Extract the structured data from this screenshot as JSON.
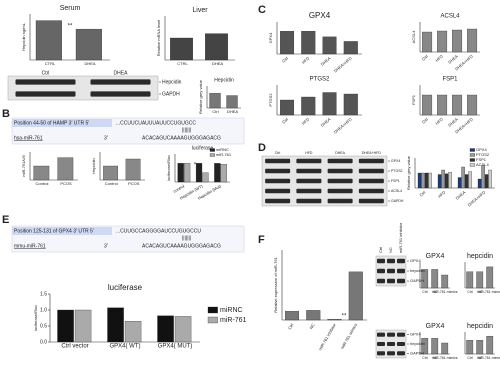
{
  "chart_data": [
    {
      "type": "bar",
      "title": "Serum",
      "ylabel": "Hepcidin ng/mL",
      "categories": [
        "CTRL",
        "DHEA"
      ],
      "values": [
        60,
        47
      ],
      "color": "#666",
      "ylim": [
        0,
        70
      ],
      "annotation": "**"
    },
    {
      "type": "bar",
      "title": "Liver",
      "ylabel": "Relative mRNA level",
      "categories": [
        "CTRL",
        "DHEA"
      ],
      "values": [
        1.5,
        1.8
      ],
      "color": "#444",
      "ylim": [
        0,
        3
      ]
    },
    {
      "type": "bar",
      "title": "Hepcidin",
      "ylabel": "Relative grey value",
      "categories": [
        "Ctrl",
        "DHEA"
      ],
      "values": [
        1.0,
        0.85
      ],
      "color": "#777",
      "ylim": [
        0,
        1.5
      ]
    },
    {
      "type": "bar",
      "ylabel": "miR-761/U6",
      "categories": [
        "Control",
        "PCOS"
      ],
      "values": [
        1.0,
        1.6
      ],
      "color": "#888",
      "ylim": [
        0,
        2
      ]
    },
    {
      "type": "bar",
      "ylabel": "Hepcidin",
      "categories": [
        "Control",
        "PCOS"
      ],
      "values": [
        1.0,
        1.5
      ],
      "color": "#888",
      "ylim": [
        0,
        2
      ]
    },
    {
      "type": "bar",
      "title": "luciferase",
      "ylabel": "luciferase/Rluc",
      "categories": [
        "control",
        "Hepcidin (WT)",
        "Hepcidin (Mut)"
      ],
      "series": [
        {
          "name": "miRNC",
          "color": "#222",
          "values": [
            1.0,
            1.0,
            1.0
          ]
        },
        {
          "name": "miR-761",
          "color": "#aaa",
          "values": [
            1.0,
            0.5,
            0.95
          ]
        }
      ],
      "ylim": [
        0,
        1.5
      ],
      "annotation": "*"
    },
    {
      "type": "bar",
      "title": "GPX4",
      "ylabel": "GPX4",
      "categories": [
        "Ctrl",
        "HFD",
        "DHEA",
        "DHEA+HFD"
      ],
      "values": [
        1.0,
        1.0,
        0.75,
        0.55
      ],
      "color": "#555",
      "ylim": [
        0,
        1.4
      ]
    },
    {
      "type": "bar",
      "title": "ACSL4",
      "ylabel": "ACSL4",
      "categories": [
        "Ctrl",
        "HFD",
        "DHEA",
        "DHEA+HFD"
      ],
      "values": [
        1.0,
        1.05,
        1.1,
        1.15
      ],
      "color": "#888",
      "ylim": [
        0,
        1.5
      ]
    },
    {
      "type": "bar",
      "title": "PTGS2",
      "ylabel": "PTGS2",
      "categories": [
        "Ctrl",
        "HFD",
        "DHEA",
        "DHEA+HFD"
      ],
      "values": [
        1.0,
        1.2,
        1.5,
        1.4
      ],
      "color": "#555",
      "ylim": [
        0,
        2
      ]
    },
    {
      "type": "bar",
      "title": "FSP1",
      "ylabel": "FSP1",
      "categories": [
        "Ctrl",
        "HFD",
        "DHEA",
        "DHEA+HFD"
      ],
      "values": [
        1.0,
        1.0,
        1.0,
        1.0
      ],
      "color": "#888",
      "ylim": [
        0,
        1.5
      ]
    },
    {
      "type": "bar",
      "ylabel": "Relative grey value",
      "categories": [
        "Ctrl",
        "HFD",
        "DHEA",
        "DHEA+HFD"
      ],
      "series": [
        {
          "name": "GPX4",
          "color": "#1f3b73",
          "values": [
            1.0,
            0.9,
            0.7,
            0.6
          ]
        },
        {
          "name": "PTGS2",
          "color": "#999",
          "values": [
            1.0,
            1.2,
            1.4,
            1.5
          ]
        },
        {
          "name": "FSP1",
          "color": "#333",
          "values": [
            1.0,
            0.95,
            0.9,
            0.9
          ]
        },
        {
          "name": "ACSL4",
          "color": "#ccc",
          "values": [
            1.0,
            1.05,
            1.1,
            1.2
          ]
        }
      ],
      "ylim": [
        0,
        2
      ]
    },
    {
      "type": "bar",
      "title": "luciferase",
      "ylabel": "luciferase/Rluc",
      "categories": [
        "Ctrl vector",
        "GPX4( WT)",
        "GPX4( MUT)"
      ],
      "series": [
        {
          "name": "miRNC",
          "color": "#111",
          "values": [
            1.0,
            1.07,
            0.82
          ]
        },
        {
          "name": "miR-761",
          "color": "#aaa",
          "values": [
            1.0,
            0.65,
            0.8
          ]
        }
      ],
      "ylim": [
        0,
        1.5
      ],
      "yticks": [
        {
          "value": 0,
          "label": "0.0"
        },
        0.5,
        {
          "value": 1,
          "label": "1.0"
        },
        1.5
      ],
      "annotation": "*"
    },
    {
      "type": "bar",
      "ylabel": "Relative expression of miR-761",
      "categories": [
        "Ctrl",
        "NC",
        "miR-761 inhibitor",
        "miR-761 mimics"
      ],
      "values": [
        1.0,
        1.1,
        0.1,
        5.5
      ],
      "color": "#777",
      "ylim": [
        0,
        8
      ],
      "annotation": "**"
    },
    {
      "type": "bar",
      "title": "GPX4",
      "categories": [
        "Ctrl",
        "NC",
        "miR-761 mimics"
      ],
      "values": [
        1.0,
        1.0,
        0.7
      ],
      "color": "#888",
      "ylim": [
        0,
        1.4
      ]
    },
    {
      "type": "bar",
      "title": "hepcidin",
      "categories": [
        "Ctrl",
        "NC",
        "miR-761 mimics"
      ],
      "values": [
        1.0,
        1.0,
        1.3
      ],
      "color": "#888",
      "ylim": [
        0,
        1.6
      ]
    },
    {
      "type": "bar",
      "title": "GPX4",
      "categories": [
        "Ctrl",
        "NC",
        "miR-761 mimics"
      ],
      "values": [
        1.0,
        1.0,
        0.7
      ],
      "color": "#888",
      "ylim": [
        0,
        1.4
      ]
    },
    {
      "type": "bar",
      "title": "hepcidin",
      "categories": [
        "Ctrl",
        "NC",
        "miR-761 mimics"
      ],
      "values": [
        1.0,
        1.0,
        1.3
      ],
      "color": "#888",
      "ylim": [
        0,
        1.6
      ]
    }
  ],
  "panels": [
    "B",
    "C",
    "D",
    "E",
    "F"
  ],
  "blots": [
    {
      "lanes": [
        "Ctrl",
        "DHEA"
      ],
      "bands": [
        "Hepcidin",
        "GAPDH"
      ]
    },
    {
      "lanes": [
        "Ctrl",
        "HFD",
        "DHEA",
        "DHEA+HFD"
      ],
      "bands": [
        "GPX4",
        "PTGS2",
        "FSP1",
        "ACSL4",
        "GAPDH"
      ]
    },
    {
      "lanes": [
        "Ctrl",
        "NC",
        "miR-761 inhibitor"
      ],
      "bands": [
        "GPX4",
        "hepcidin",
        "GAPDH"
      ]
    },
    {
      "bands": [
        "GPX4",
        "hepcidin",
        "GAPDH"
      ]
    }
  ],
  "sequences": [
    {
      "position": "Position 44-50 of HAMP 3' UTR 5'",
      "target": "...CCUUCUAUUUAUUCCUGUGCC",
      "pairing": "|||||||",
      "mirna": "hsa-miR-761",
      "end": "3'",
      "mirna_seq": "ACACAGUCAAAAGUGGGAGACG"
    },
    {
      "position": "Position 125-131 of GPX4 3' UTR 5'",
      "target": "...CUUGCCAGGGGAUCCUGUGCCU",
      "pairing": "|||||||",
      "mirna": "mmu-miR-761",
      "end": "3'",
      "mirna_seq": "ACACAGUCAAAAGUGGGAGACG"
    }
  ]
}
